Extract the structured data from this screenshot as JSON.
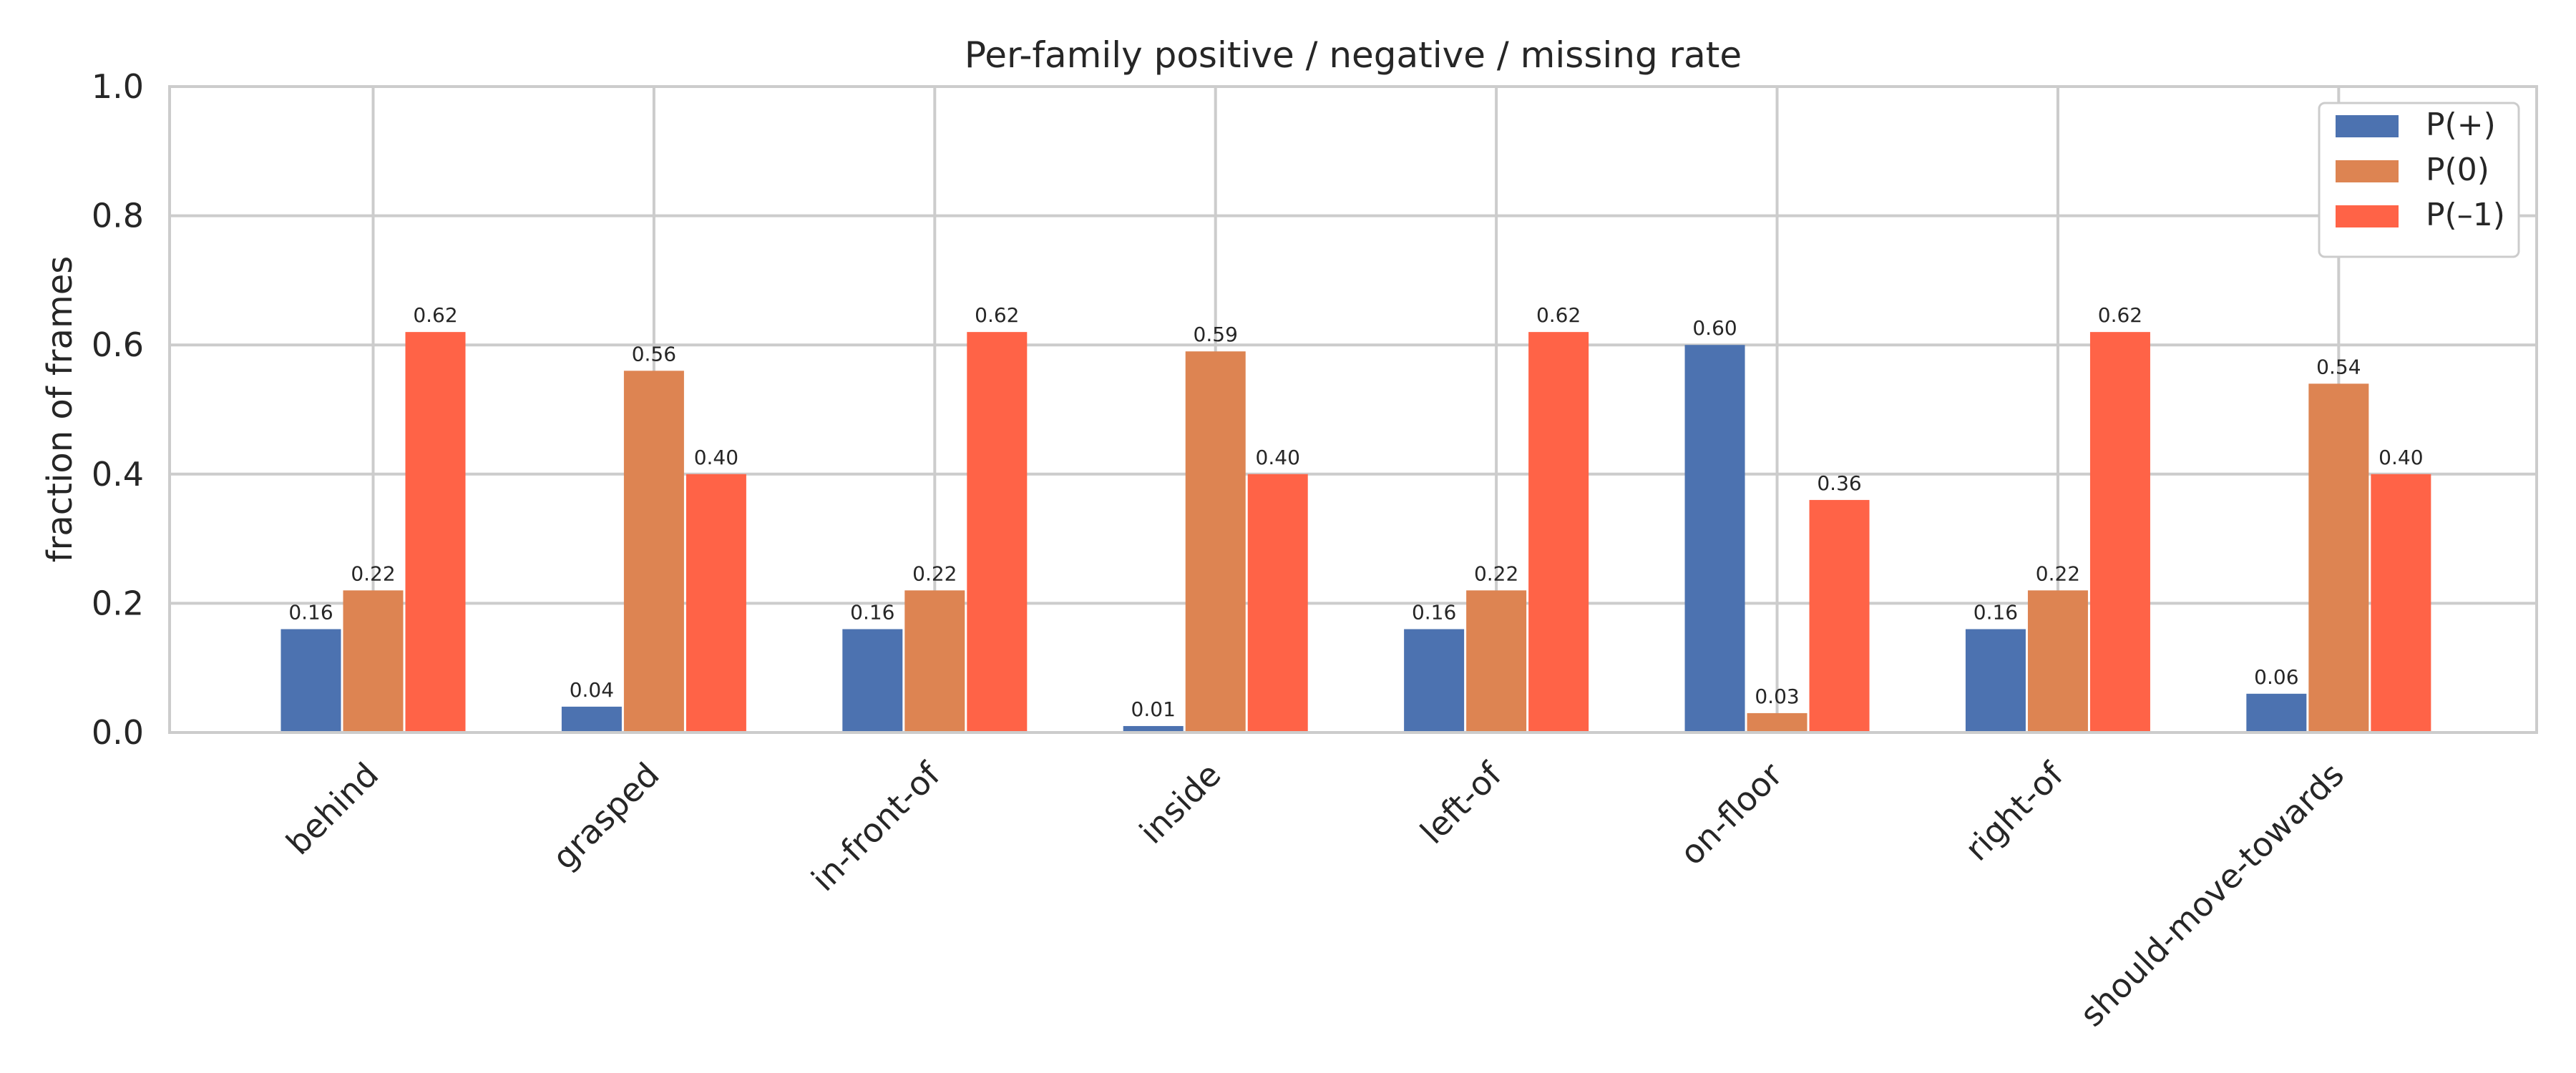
{
  "chart_data": {
    "type": "bar",
    "title": "Per-family positive / negative / missing rate",
    "xlabel": "",
    "ylabel": "fraction of frames",
    "ylim": [
      0,
      1.0
    ],
    "yticks": [
      "0.0",
      "0.2",
      "0.4",
      "0.6",
      "0.8",
      "1.0"
    ],
    "grid": true,
    "legend_position": "top-right",
    "categories": [
      "behind",
      "grasped",
      "in-front-of",
      "inside",
      "left-of",
      "on-floor",
      "right-of",
      "should-move-towards"
    ],
    "series": [
      {
        "name": "P(+)",
        "color": "#4c72b0",
        "values": [
          0.16,
          0.04,
          0.16,
          0.01,
          0.16,
          0.6,
          0.16,
          0.06
        ],
        "labels": [
          "0.16",
          "0.04",
          "0.16",
          "0.01",
          "0.16",
          "0.60",
          "0.16",
          "0.06"
        ]
      },
      {
        "name": "P(0)",
        "color": "#dd8452",
        "values": [
          0.22,
          0.56,
          0.22,
          0.59,
          0.22,
          0.03,
          0.22,
          0.54
        ],
        "labels": [
          "0.22",
          "0.56",
          "0.22",
          "0.59",
          "0.22",
          "0.03",
          "0.22",
          "0.54"
        ]
      },
      {
        "name": "P(–1)",
        "color": "#ff6347",
        "values": [
          0.62,
          0.4,
          0.62,
          0.4,
          0.62,
          0.36,
          0.62,
          0.4
        ],
        "labels": [
          "0.62",
          "0.40",
          "0.62",
          "0.40",
          "0.62",
          "0.36",
          "0.62",
          "0.40"
        ]
      }
    ]
  }
}
